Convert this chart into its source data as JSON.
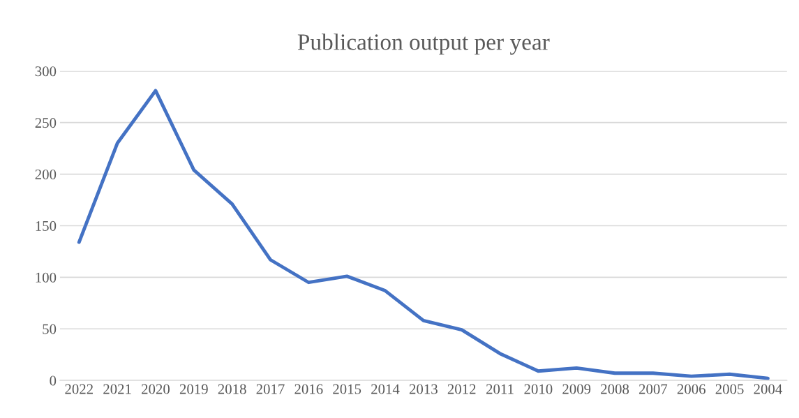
{
  "chart_data": {
    "type": "line",
    "title": "Publication output per year",
    "categories": [
      "2022",
      "2021",
      "2020",
      "2019",
      "2018",
      "2017",
      "2016",
      "2015",
      "2014",
      "2013",
      "2012",
      "2011",
      "2010",
      "2009",
      "2008",
      "2007",
      "2006",
      "2005",
      "2004"
    ],
    "series": [
      {
        "color": "#4472c4",
        "values": [
          134,
          230,
          281,
          204,
          171,
          117,
          95,
          101,
          87,
          58,
          49,
          26,
          9,
          12,
          7,
          7,
          4,
          6,
          2
        ]
      }
    ],
    "ylim": [
      0,
      300
    ],
    "yticks": [
      0,
      50,
      100,
      150,
      200,
      250,
      300
    ],
    "grid": "y",
    "legend": false,
    "marker": "none",
    "line_style": "solid"
  }
}
